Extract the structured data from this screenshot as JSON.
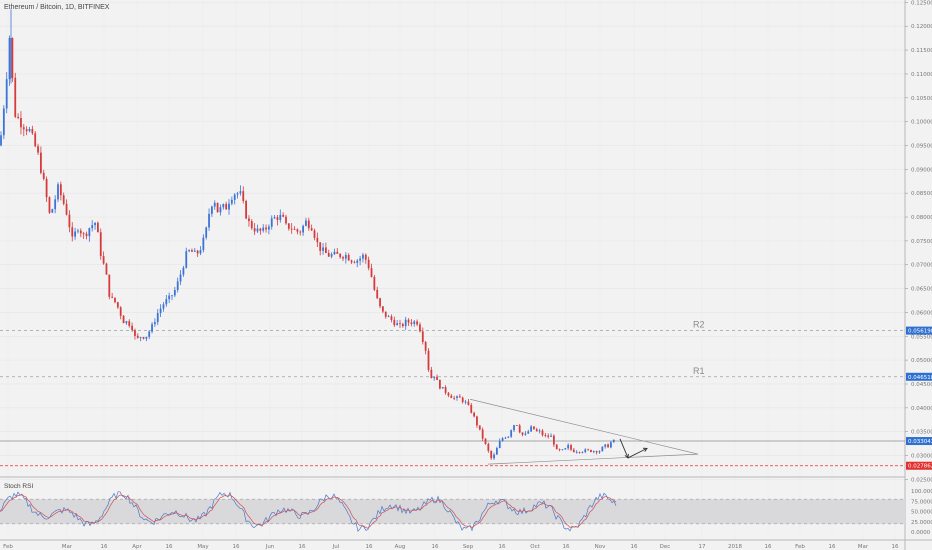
{
  "header": {
    "title": "Ethereum / Bitcoin, 1D, BITFINEX"
  },
  "colors": {
    "up": "#3b73d6",
    "down": "#d63b3b",
    "r_line": "#9aa0a6",
    "support": "#e03030",
    "current": "#2f6fd0",
    "stoch_k": "#4a78c8",
    "stoch_d": "#d05050",
    "band": "#d9d9dc"
  },
  "chart_data": {
    "type": "candlestick",
    "symbol": "Ethereum / Bitcoin",
    "interval": "1D",
    "exchange": "BITFINEX",
    "ylim": [
      0.0255,
      0.1255
    ],
    "y_ticks": [
      "0.125000",
      "0.120000",
      "0.115000",
      "0.110000",
      "0.105000",
      "0.100000",
      "0.095000",
      "0.090000",
      "0.085000",
      "0.080000",
      "0.075000",
      "0.070000",
      "0.065000",
      "0.060000",
      "0.055000",
      "0.050000",
      "0.045000",
      "0.040000",
      "0.035000",
      "0.030000",
      "0.025000"
    ],
    "x_ticks": [
      "Feb",
      "Mar",
      "16",
      "Apr",
      "16",
      "May",
      "16",
      "Jun",
      "16",
      "Jul",
      "16",
      "Aug",
      "16",
      "Sep",
      "16",
      "Oct",
      "16",
      "Nov",
      "16",
      "Dec",
      "17",
      "2018",
      "16",
      "Feb",
      "16",
      "Mar",
      "16"
    ],
    "price_path": [
      [
        0,
        0.095
      ],
      [
        6,
        0.108
      ],
      [
        10,
        0.119
      ],
      [
        14,
        0.102
      ],
      [
        20,
        0.1
      ],
      [
        30,
        0.098
      ],
      [
        38,
        0.093
      ],
      [
        44,
        0.087
      ],
      [
        50,
        0.08
      ],
      [
        54,
        0.083
      ],
      [
        58,
        0.086
      ],
      [
        62,
        0.084
      ],
      [
        68,
        0.08
      ],
      [
        72,
        0.075
      ],
      [
        78,
        0.078
      ],
      [
        84,
        0.076
      ],
      [
        90,
        0.078
      ],
      [
        96,
        0.079
      ],
      [
        100,
        0.073
      ],
      [
        106,
        0.068
      ],
      [
        110,
        0.063
      ],
      [
        116,
        0.062
      ],
      [
        120,
        0.06
      ],
      [
        124,
        0.058
      ],
      [
        128,
        0.058
      ],
      [
        132,
        0.057
      ],
      [
        136,
        0.054
      ],
      [
        140,
        0.055
      ],
      [
        146,
        0.055
      ],
      [
        152,
        0.057
      ],
      [
        158,
        0.06
      ],
      [
        164,
        0.062
      ],
      [
        170,
        0.063
      ],
      [
        176,
        0.065
      ],
      [
        182,
        0.069
      ],
      [
        186,
        0.072
      ],
      [
        190,
        0.073
      ],
      [
        196,
        0.072
      ],
      [
        202,
        0.074
      ],
      [
        206,
        0.077
      ],
      [
        210,
        0.082
      ],
      [
        214,
        0.084
      ],
      [
        218,
        0.081
      ],
      [
        222,
        0.082
      ],
      [
        226,
        0.082
      ],
      [
        230,
        0.084
      ],
      [
        234,
        0.085
      ],
      [
        240,
        0.085
      ],
      [
        244,
        0.082
      ],
      [
        248,
        0.079
      ],
      [
        252,
        0.078
      ],
      [
        258,
        0.077
      ],
      [
        264,
        0.077
      ],
      [
        270,
        0.079
      ],
      [
        276,
        0.08
      ],
      [
        282,
        0.08
      ],
      [
        286,
        0.078
      ],
      [
        290,
        0.078
      ],
      [
        296,
        0.077
      ],
      [
        300,
        0.077
      ],
      [
        306,
        0.079
      ],
      [
        312,
        0.078
      ],
      [
        318,
        0.074
      ],
      [
        322,
        0.073
      ],
      [
        328,
        0.072
      ],
      [
        334,
        0.072
      ],
      [
        340,
        0.072
      ],
      [
        346,
        0.072
      ],
      [
        352,
        0.071
      ],
      [
        358,
        0.071
      ],
      [
        364,
        0.072
      ],
      [
        370,
        0.069
      ],
      [
        374,
        0.065
      ],
      [
        378,
        0.062
      ],
      [
        382,
        0.06
      ],
      [
        388,
        0.059
      ],
      [
        394,
        0.058
      ],
      [
        400,
        0.057
      ],
      [
        406,
        0.058
      ],
      [
        412,
        0.058
      ],
      [
        418,
        0.058
      ],
      [
        422,
        0.055
      ],
      [
        426,
        0.052
      ],
      [
        430,
        0.046
      ],
      [
        434,
        0.047
      ],
      [
        438,
        0.045
      ],
      [
        442,
        0.044
      ],
      [
        448,
        0.043
      ],
      [
        454,
        0.042
      ],
      [
        460,
        0.042
      ],
      [
        466,
        0.041
      ],
      [
        472,
        0.039
      ],
      [
        476,
        0.037
      ],
      [
        480,
        0.035
      ],
      [
        484,
        0.033
      ],
      [
        488,
        0.031
      ],
      [
        492,
        0.029
      ],
      [
        496,
        0.031
      ],
      [
        500,
        0.033
      ],
      [
        504,
        0.034
      ],
      [
        508,
        0.034
      ],
      [
        512,
        0.036
      ],
      [
        516,
        0.037
      ],
      [
        520,
        0.035
      ],
      [
        524,
        0.034
      ],
      [
        528,
        0.035
      ],
      [
        532,
        0.036
      ],
      [
        536,
        0.035
      ],
      [
        540,
        0.035
      ],
      [
        544,
        0.034
      ],
      [
        548,
        0.034
      ],
      [
        552,
        0.034
      ],
      [
        556,
        0.031
      ],
      [
        560,
        0.031
      ],
      [
        564,
        0.031
      ],
      [
        568,
        0.032
      ],
      [
        572,
        0.031
      ],
      [
        576,
        0.031
      ],
      [
        580,
        0.031
      ],
      [
        584,
        0.031
      ],
      [
        588,
        0.031
      ],
      [
        592,
        0.031
      ],
      [
        596,
        0.031
      ],
      [
        600,
        0.031
      ],
      [
        604,
        0.032
      ],
      [
        608,
        0.032
      ],
      [
        612,
        0.033
      ],
      [
        616,
        0.033
      ]
    ],
    "levels": [
      {
        "label": "R2",
        "value": 0.05619,
        "badge": "0.056198"
      },
      {
        "label": "R1",
        "value": 0.04651,
        "badge": "0.046518"
      },
      {
        "label": "",
        "value": 0.03304,
        "badge": "0.033043"
      },
      {
        "label": "",
        "value": 0.02786,
        "badge": "0.027862"
      }
    ],
    "triangle": {
      "upper": [
        [
          470,
          0.0418
        ],
        [
          698,
          0.0303
        ]
      ],
      "lower": [
        [
          488,
          0.0282
        ],
        [
          698,
          0.0303
        ]
      ]
    },
    "projection": [
      [
        620,
        0.0335
      ],
      [
        628,
        0.0295
      ],
      [
        647,
        0.0315
      ]
    ],
    "oscillator": {
      "name": "Stoch RSI",
      "ylim": [
        0,
        100
      ],
      "y_ticks": [
        "100.0000",
        "75.0000",
        "50.0000",
        "25.0000",
        "0.0000"
      ],
      "band": [
        20,
        80
      ]
    }
  }
}
